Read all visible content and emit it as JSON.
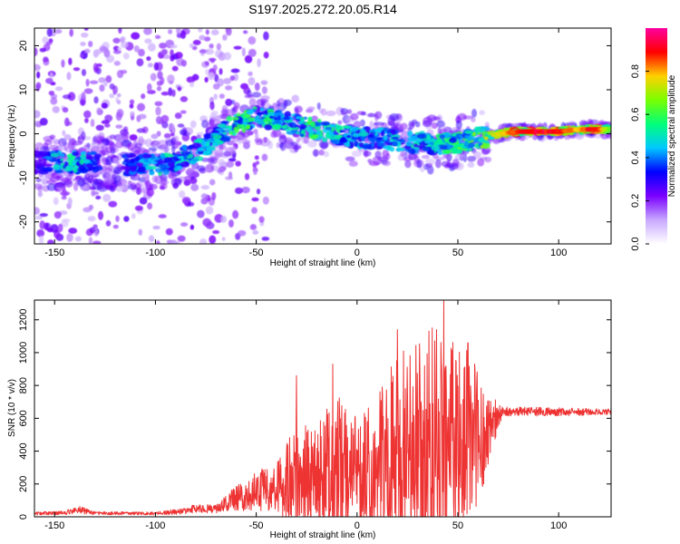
{
  "title": "S197.2025.272.20.05.R14",
  "chart_data": [
    {
      "type": "heatmap",
      "xlabel": "Height of straight line (km)",
      "ylabel": "Frequency (Hz)",
      "xlim": [
        -160,
        126
      ],
      "ylim": [
        -25,
        24
      ],
      "xticks": [
        -150,
        -100,
        -50,
        0,
        50,
        100
      ],
      "yticks": [
        -20,
        -10,
        0,
        10,
        20
      ],
      "colorbar": {
        "label": "Normalized spectral amplitude",
        "range": [
          0,
          1
        ],
        "ticks": [
          "0.0",
          "0.2",
          "0.4",
          "0.6",
          "0.8"
        ],
        "tick_values": [
          0,
          0.2,
          0.4,
          0.6,
          0.8
        ],
        "colors": [
          "#ffffff",
          "#c8a8ff",
          "#7a00ff",
          "#0000ff",
          "#00c8ff",
          "#00ff7a",
          "#7aff00",
          "#ffd000",
          "#ff0000",
          "#ff00a0"
        ]
      },
      "ridge": [
        {
          "x": -160,
          "y": -6.5,
          "a": 0.25
        },
        {
          "x": -150,
          "y": -6.5,
          "a": 0.5
        },
        {
          "x": -140,
          "y": -6.5,
          "a": 0.55
        },
        {
          "x": -133,
          "y": -6.0,
          "a": 0.45
        },
        {
          "x": -115,
          "y": -7.0,
          "a": 0.35
        },
        {
          "x": -100,
          "y": -7.0,
          "a": 0.55
        },
        {
          "x": -90,
          "y": -6.0,
          "a": 0.5
        },
        {
          "x": -80,
          "y": -4.0,
          "a": 0.5
        },
        {
          "x": -70,
          "y": -1.0,
          "a": 0.5
        },
        {
          "x": -60,
          "y": 2.5,
          "a": 0.6
        },
        {
          "x": -50,
          "y": 4.0,
          "a": 0.6
        },
        {
          "x": -40,
          "y": 3.0,
          "a": 0.55
        },
        {
          "x": -30,
          "y": 2.0,
          "a": 0.55
        },
        {
          "x": -20,
          "y": 1.0,
          "a": 0.6
        },
        {
          "x": -10,
          "y": 0.0,
          "a": 0.55
        },
        {
          "x": 0,
          "y": -1.0,
          "a": 0.5
        },
        {
          "x": 10,
          "y": -1.0,
          "a": 0.45
        },
        {
          "x": 20,
          "y": -1.5,
          "a": 0.5
        },
        {
          "x": 30,
          "y": -2.0,
          "a": 0.5
        },
        {
          "x": 40,
          "y": -2.5,
          "a": 0.55
        },
        {
          "x": 50,
          "y": -2.0,
          "a": 0.6
        },
        {
          "x": 60,
          "y": -1.0,
          "a": 0.7
        },
        {
          "x": 70,
          "y": 0.0,
          "a": 0.8
        },
        {
          "x": 80,
          "y": 0.5,
          "a": 0.9
        },
        {
          "x": 90,
          "y": 0.5,
          "a": 0.97
        },
        {
          "x": 100,
          "y": 0.5,
          "a": 0.92
        },
        {
          "x": 110,
          "y": 1.0,
          "a": 0.85
        },
        {
          "x": 118,
          "y": 1.0,
          "a": 0.95
        },
        {
          "x": 125,
          "y": 1.0,
          "a": 0.7
        }
      ]
    },
    {
      "type": "line",
      "xlabel": "Height of straight line (km)",
      "ylabel": "SNR (10 * v/v)",
      "xlim": [
        -160,
        126
      ],
      "ylim": [
        0,
        1320
      ],
      "xticks": [
        -150,
        -100,
        -50,
        0,
        50,
        100
      ],
      "yticks": [
        0,
        200,
        400,
        600,
        800,
        1000,
        1200
      ],
      "color": "#ee3333",
      "envelope": [
        {
          "x": -160,
          "base": 20,
          "amp": 10
        },
        {
          "x": -145,
          "base": 25,
          "amp": 12
        },
        {
          "x": -138,
          "base": 45,
          "amp": 25
        },
        {
          "x": -130,
          "base": 22,
          "amp": 10
        },
        {
          "x": -100,
          "base": 20,
          "amp": 10
        },
        {
          "x": -85,
          "base": 35,
          "amp": 20
        },
        {
          "x": -78,
          "base": 55,
          "amp": 30
        },
        {
          "x": -70,
          "base": 45,
          "amp": 25
        },
        {
          "x": -60,
          "base": 110,
          "amp": 80
        },
        {
          "x": -50,
          "base": 160,
          "amp": 120
        },
        {
          "x": -40,
          "base": 170,
          "amp": 150
        },
        {
          "x": -30,
          "base": 200,
          "amp": 380
        },
        {
          "x": -20,
          "base": 230,
          "amp": 300
        },
        {
          "x": -12,
          "base": 280,
          "amp": 500
        },
        {
          "x": 0,
          "base": 290,
          "amp": 350
        },
        {
          "x": 10,
          "base": 320,
          "amp": 420
        },
        {
          "x": 20,
          "base": 400,
          "amp": 600
        },
        {
          "x": 30,
          "base": 420,
          "amp": 650
        },
        {
          "x": 40,
          "base": 440,
          "amp": 750
        },
        {
          "x": 50,
          "base": 430,
          "amp": 600
        },
        {
          "x": 60,
          "base": 500,
          "amp": 520
        },
        {
          "x": 66,
          "base": 560,
          "amp": 200
        },
        {
          "x": 72,
          "base": 640,
          "amp": 30
        },
        {
          "x": 126,
          "base": 640,
          "amp": 20
        }
      ],
      "spikes": [
        {
          "x": -30,
          "y": 860
        },
        {
          "x": -12,
          "y": 930
        },
        {
          "x": 20,
          "y": 1140
        },
        {
          "x": 43,
          "y": 1330
        },
        {
          "x": 55,
          "y": 1060
        }
      ]
    }
  ]
}
